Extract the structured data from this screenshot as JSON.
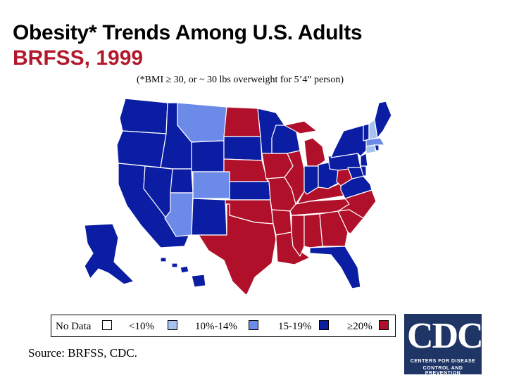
{
  "title": {
    "line1": "Obesity* Trends Among U.S. Adults",
    "line2": "BRFSS, 1999"
  },
  "subtitle": "(*BMI ≥ 30, or ~ 30 lbs overweight for 5’4” person)",
  "colors": {
    "title_red": "#b3192c",
    "no_data": "#ffffff",
    "lt10": "#a8c2f0",
    "p10_14": "#6c8be8",
    "p15_19": "#0b1da3",
    "gte20": "#b0102a"
  },
  "legend": [
    {
      "label": "No Data",
      "category": "no_data"
    },
    {
      "label": "<10%",
      "category": "lt10"
    },
    {
      "label": "10%-14%",
      "category": "p10_14"
    },
    {
      "label": "15-19%",
      "category": "p15_19"
    },
    {
      "label": "≥20%",
      "category": "gte20"
    }
  ],
  "source": "Source: BRFSS, CDC.",
  "logo": {
    "text": "CDC",
    "line1": "CENTERS FOR DISEASE",
    "line2": "CONTROL AND PREVENTION"
  },
  "states": [
    {
      "code": "WA",
      "category": "p15_19"
    },
    {
      "code": "OR",
      "category": "p15_19"
    },
    {
      "code": "CA",
      "category": "p15_19"
    },
    {
      "code": "NV",
      "category": "p15_19"
    },
    {
      "code": "ID",
      "category": "p15_19"
    },
    {
      "code": "MT",
      "category": "p10_14"
    },
    {
      "code": "WY",
      "category": "p15_19"
    },
    {
      "code": "UT",
      "category": "p15_19"
    },
    {
      "code": "CO",
      "category": "p10_14"
    },
    {
      "code": "AZ",
      "category": "p10_14"
    },
    {
      "code": "NM",
      "category": "p15_19"
    },
    {
      "code": "ND",
      "category": "gte20"
    },
    {
      "code": "SD",
      "category": "p15_19"
    },
    {
      "code": "NE",
      "category": "gte20"
    },
    {
      "code": "KS",
      "category": "p15_19"
    },
    {
      "code": "OK",
      "category": "gte20"
    },
    {
      "code": "TX",
      "category": "gte20"
    },
    {
      "code": "MN",
      "category": "p15_19"
    },
    {
      "code": "IA",
      "category": "gte20"
    },
    {
      "code": "MO",
      "category": "gte20"
    },
    {
      "code": "AR",
      "category": "gte20"
    },
    {
      "code": "LA",
      "category": "gte20"
    },
    {
      "code": "WI",
      "category": "p15_19"
    },
    {
      "code": "IL",
      "category": "gte20"
    },
    {
      "code": "MI",
      "category": "gte20"
    },
    {
      "code": "IN",
      "category": "p15_19"
    },
    {
      "code": "OH",
      "category": "p15_19"
    },
    {
      "code": "KY",
      "category": "gte20"
    },
    {
      "code": "TN",
      "category": "gte20"
    },
    {
      "code": "MS",
      "category": "gte20"
    },
    {
      "code": "AL",
      "category": "gte20"
    },
    {
      "code": "GA",
      "category": "gte20"
    },
    {
      "code": "FL",
      "category": "p15_19"
    },
    {
      "code": "SC",
      "category": "gte20"
    },
    {
      "code": "NC",
      "category": "gte20"
    },
    {
      "code": "VA",
      "category": "p15_19"
    },
    {
      "code": "WV",
      "category": "gte20"
    },
    {
      "code": "PA",
      "category": "p15_19"
    },
    {
      "code": "NY",
      "category": "p15_19"
    },
    {
      "code": "MD",
      "category": "p15_19"
    },
    {
      "code": "DE",
      "category": "p15_19"
    },
    {
      "code": "NJ",
      "category": "p15_19"
    },
    {
      "code": "CT",
      "category": "lt10"
    },
    {
      "code": "RI",
      "category": "p15_19"
    },
    {
      "code": "MA",
      "category": "p10_14"
    },
    {
      "code": "VT",
      "category": "p15_19"
    },
    {
      "code": "NH",
      "category": "lt10"
    },
    {
      "code": "ME",
      "category": "p15_19"
    },
    {
      "code": "AK",
      "category": "p15_19"
    },
    {
      "code": "HI",
      "category": "p15_19"
    }
  ]
}
